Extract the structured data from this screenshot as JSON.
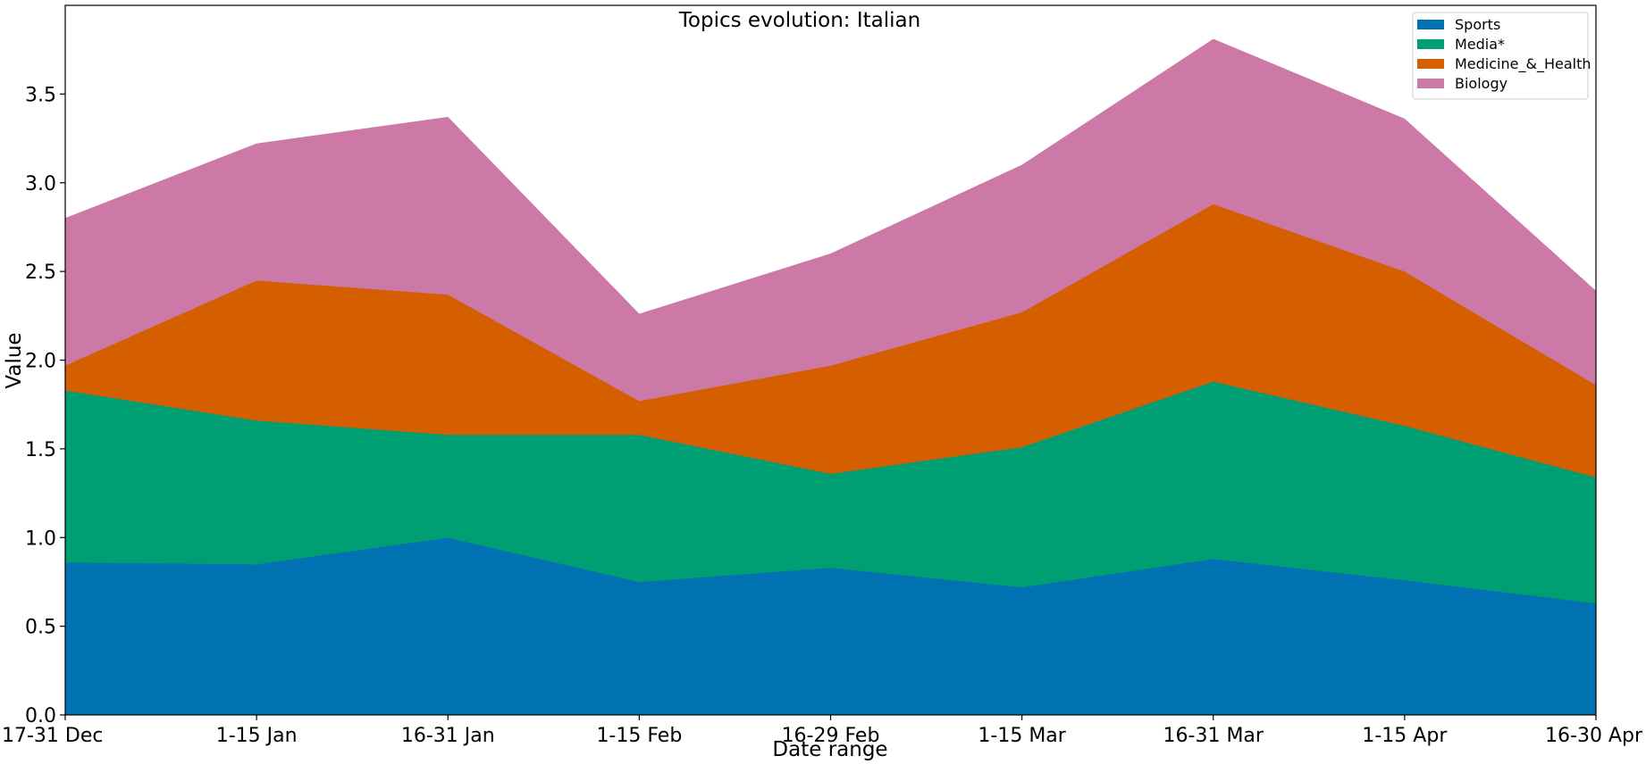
{
  "chart_data": {
    "type": "area",
    "stacked": true,
    "title": "Topics evolution: Italian",
    "xlabel": "Date range",
    "ylabel": "Value",
    "categories": [
      "17-31 Dec",
      "1-15 Jan",
      "16-31 Jan",
      "1-15 Feb",
      "16-29 Feb",
      "1-15 Mar",
      "16-31 Mar",
      "1-15 Apr",
      "16-30 Apr"
    ],
    "ylim": [
      0,
      4.0
    ],
    "yticks": [
      "0.0",
      "0.5",
      "1.0",
      "1.5",
      "2.0",
      "2.5",
      "3.0",
      "3.5"
    ],
    "grid": false,
    "legend_position": "top-right",
    "series": [
      {
        "name": "Sports",
        "color": "#0072b2",
        "values": [
          0.86,
          0.85,
          1.0,
          0.75,
          0.83,
          0.72,
          0.88,
          0.76,
          0.63
        ]
      },
      {
        "name": "Media*",
        "color": "#009e73",
        "values": [
          0.97,
          0.81,
          0.58,
          0.83,
          0.53,
          0.79,
          1.0,
          0.87,
          0.71
        ]
      },
      {
        "name": "Medicine_&_Health",
        "color": "#d55e00",
        "values": [
          0.14,
          0.79,
          0.79,
          0.19,
          0.61,
          0.76,
          1.0,
          0.87,
          0.52
        ]
      },
      {
        "name": "Biology",
        "color": "#cc79a7",
        "values": [
          0.83,
          0.77,
          1.0,
          0.49,
          0.63,
          0.83,
          0.93,
          0.86,
          0.53
        ]
      }
    ]
  }
}
